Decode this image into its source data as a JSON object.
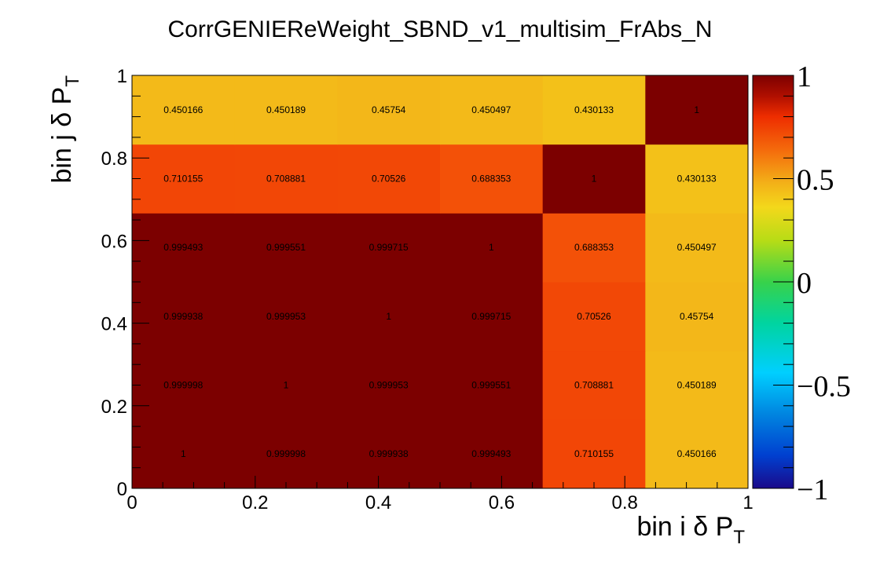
{
  "chart_data": {
    "type": "heatmap",
    "title": "CorrGENIEReWeight_SBND_v1_multisim_FrAbs_N",
    "x_edges": [
      0,
      0.1666667,
      0.3333333,
      0.5,
      0.6666667,
      0.8333333,
      1
    ],
    "y_edges": [
      0,
      0.1666667,
      0.3333333,
      0.5,
      0.6666667,
      0.8333333,
      1
    ],
    "xlim": [
      0,
      1
    ],
    "ylim": [
      0,
      1
    ],
    "x_ticks": [
      "0",
      "0.2",
      "0.4",
      "0.6",
      "0.8",
      "1"
    ],
    "y_ticks": [
      "0",
      "0.2",
      "0.4",
      "0.6",
      "0.8",
      "1"
    ],
    "xlabel": {
      "main": "bin i δ P",
      "sub": "T"
    },
    "ylabel": {
      "main": "bin j δ P",
      "sub": "T"
    },
    "values": [
      [
        1,
        0.999998,
        0.999938,
        0.999493,
        0.710155,
        0.450166
      ],
      [
        0.999998,
        1,
        0.999953,
        0.999551,
        0.708881,
        0.450189
      ],
      [
        0.999938,
        0.999953,
        1,
        0.999715,
        0.70526,
        0.45754
      ],
      [
        0.999493,
        0.999551,
        0.999715,
        1,
        0.688353,
        0.450497
      ],
      [
        0.710155,
        0.708881,
        0.70526,
        0.688353,
        1,
        0.430133
      ],
      [
        0.450166,
        0.450189,
        0.45754,
        0.450497,
        0.430133,
        1
      ]
    ],
    "labels": [
      [
        "1",
        "0.999998",
        "0.999938",
        "0.999493",
        "0.710155",
        "0.450166"
      ],
      [
        "0.999998",
        "1",
        "0.999953",
        "0.999551",
        "0.708881",
        "0.450189"
      ],
      [
        "0.999938",
        "0.999953",
        "1",
        "0.999715",
        "0.70526",
        "0.45754"
      ],
      [
        "0.999493",
        "0.999551",
        "0.999715",
        "1",
        "0.688353",
        "0.450497"
      ],
      [
        "0.710155",
        "0.708881",
        "0.70526",
        "0.688353",
        "1",
        "0.430133"
      ],
      [
        "0.450166",
        "0.450189",
        "0.45754",
        "0.450497",
        "0.430133",
        "1"
      ]
    ],
    "colorbar": {
      "range": [
        -1,
        1
      ],
      "ticks": [
        "1",
        "0.5",
        "0",
        "−0.5",
        "−1"
      ],
      "palette": "rainbow (blue to dark red)"
    },
    "grid": false
  }
}
